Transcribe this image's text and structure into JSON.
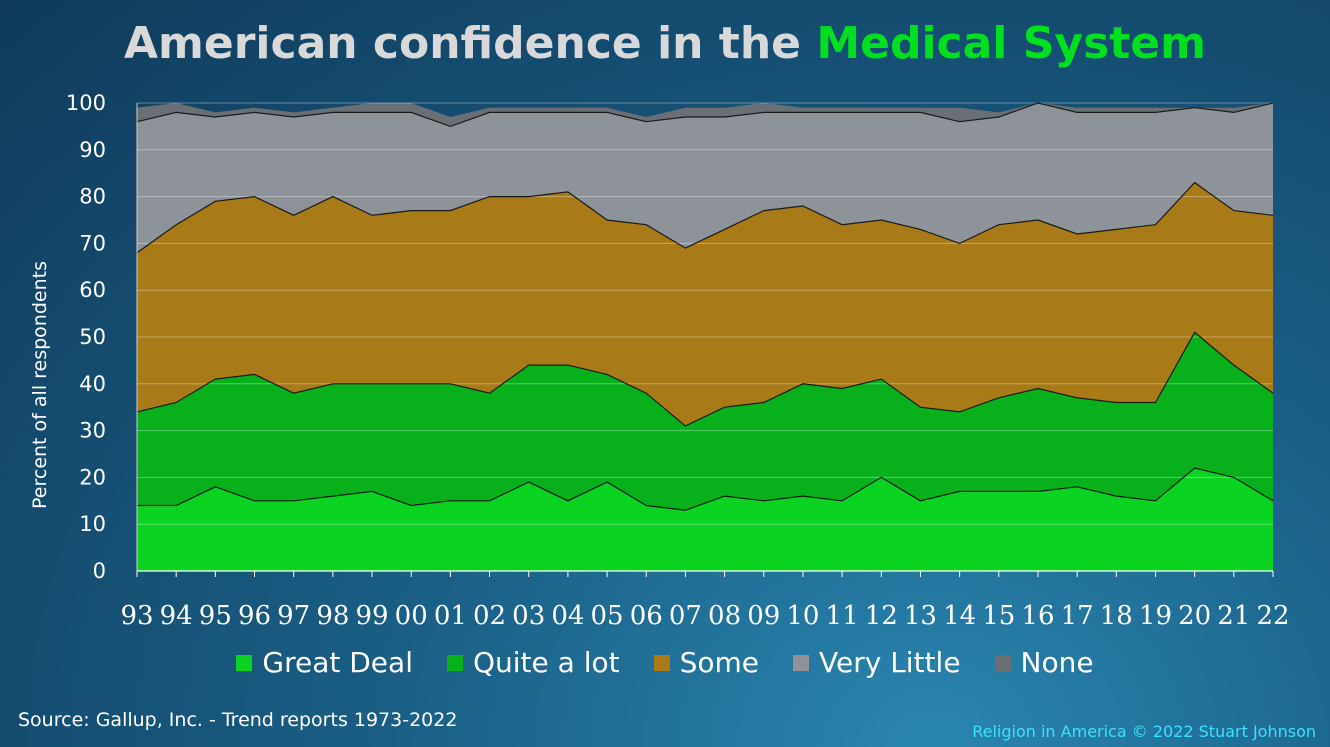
{
  "title_part1": "American confidence in the ",
  "title_part2": "Medical System",
  "source": "Source: Gallup, Inc. - Trend reports 1973-2022",
  "credit": "Religion in America © 2022 Stuart Johnson",
  "chart_data": {
    "type": "area",
    "stacked": true,
    "ylabel": "Percent of all respondents",
    "xlabel": "",
    "ylim": [
      0,
      100
    ],
    "yticks": [
      0,
      10,
      20,
      30,
      40,
      50,
      60,
      70,
      80,
      90,
      100
    ],
    "grid": true,
    "legend_position": "bottom",
    "categories": [
      "93",
      "94",
      "95",
      "96",
      "97",
      "98",
      "99",
      "00",
      "01",
      "02",
      "03",
      "04",
      "05",
      "06",
      "07",
      "08",
      "09",
      "10",
      "11",
      "12",
      "13",
      "14",
      "15",
      "16",
      "17",
      "18",
      "19",
      "20",
      "21",
      "22"
    ],
    "series": [
      {
        "name": "Great Deal",
        "color": "#0ad421",
        "values": [
          14,
          14,
          18,
          15,
          15,
          16,
          17,
          14,
          15,
          15,
          19,
          15,
          19,
          14,
          13,
          16,
          15,
          16,
          15,
          20,
          15,
          17,
          17,
          17,
          18,
          16,
          15,
          22,
          20,
          15
        ]
      },
      {
        "name": "Quite a lot",
        "color": "#08b01c",
        "values": [
          20,
          22,
          23,
          27,
          23,
          24,
          23,
          26,
          25,
          23,
          25,
          29,
          23,
          24,
          18,
          19,
          21,
          24,
          24,
          21,
          20,
          17,
          20,
          22,
          19,
          20,
          21,
          29,
          24,
          23
        ]
      },
      {
        "name": "Some",
        "color": "#a87a18",
        "values": [
          34,
          38,
          38,
          38,
          38,
          40,
          36,
          37,
          37,
          42,
          36,
          37,
          33,
          36,
          38,
          38,
          41,
          38,
          35,
          34,
          38,
          36,
          37,
          36,
          35,
          37,
          38,
          32,
          33,
          38
        ]
      },
      {
        "name": "Very Little",
        "color": "#8e9399",
        "values": [
          28,
          24,
          18,
          18,
          21,
          18,
          22,
          21,
          18,
          18,
          18,
          17,
          23,
          22,
          28,
          24,
          21,
          20,
          24,
          23,
          25,
          26,
          23,
          25,
          26,
          25,
          24,
          16,
          21,
          24
        ]
      },
      {
        "name": "None",
        "color": "#6a6f75",
        "values": [
          3,
          2,
          1,
          1,
          1,
          1,
          2,
          2,
          2,
          1,
          1,
          1,
          1,
          1,
          2,
          2,
          2,
          1,
          1,
          1,
          1,
          3,
          1,
          0,
          1,
          1,
          1,
          0,
          1,
          0
        ]
      }
    ]
  }
}
